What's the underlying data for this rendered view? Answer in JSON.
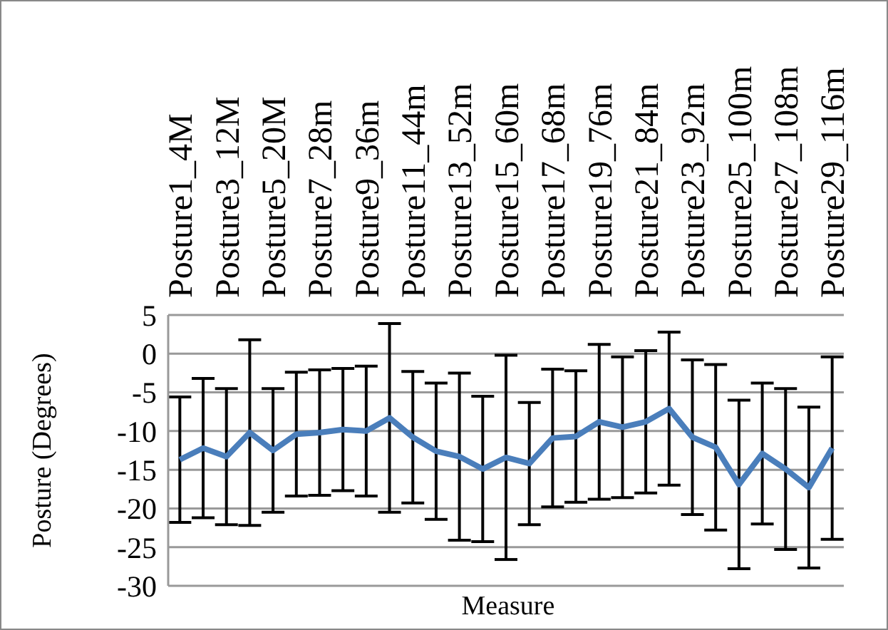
{
  "chart_data": {
    "type": "line",
    "xlabel": "Measure",
    "ylabel": "Posture (Degrees)",
    "categories": [
      "Posture1_4M",
      null,
      "Posture3_12M",
      null,
      "Posture5_20M",
      null,
      "Posture7_28m",
      null,
      "Posture9_36m",
      null,
      "Posture11_44m",
      null,
      "Posture13_52m",
      null,
      "Posture15_60m",
      null,
      "Posture17_68m",
      null,
      "Posture19_76m",
      null,
      "Posture21_84m",
      null,
      "Posture23_92m",
      null,
      "Posture25_100m",
      null,
      "Posture27_108m",
      null,
      "Posture29_116m"
    ],
    "series": [
      {
        "color": "#4a7ebb",
        "values": [
          -13.7,
          -12.2,
          -13.3,
          -10.2,
          -12.5,
          -10.4,
          -10.2,
          -9.8,
          -10.0,
          -8.3,
          -10.8,
          -12.6,
          -13.3,
          -14.9,
          -13.4,
          -14.2,
          -10.9,
          -10.7,
          -8.8,
          -9.5,
          -8.8,
          -7.1,
          -10.8,
          -12.1,
          -16.9,
          -12.9,
          -14.9,
          -17.3,
          -12.2
        ],
        "errors": [
          8.1,
          9.0,
          8.8,
          12.0,
          8.0,
          8.0,
          8.1,
          7.9,
          8.4,
          12.2,
          8.5,
          8.8,
          10.8,
          9.4,
          13.2,
          7.9,
          8.9,
          8.5,
          10.0,
          9.1,
          9.2,
          9.9,
          10.0,
          10.7,
          10.9,
          9.1,
          10.4,
          10.4,
          11.8
        ]
      }
    ],
    "ylim": [
      -30,
      5
    ],
    "yticks": [
      -30,
      -25,
      -20,
      -15,
      -10,
      -5,
      0,
      5
    ],
    "grid": "y",
    "marker": "none",
    "line_style": "solid",
    "legend": false
  }
}
